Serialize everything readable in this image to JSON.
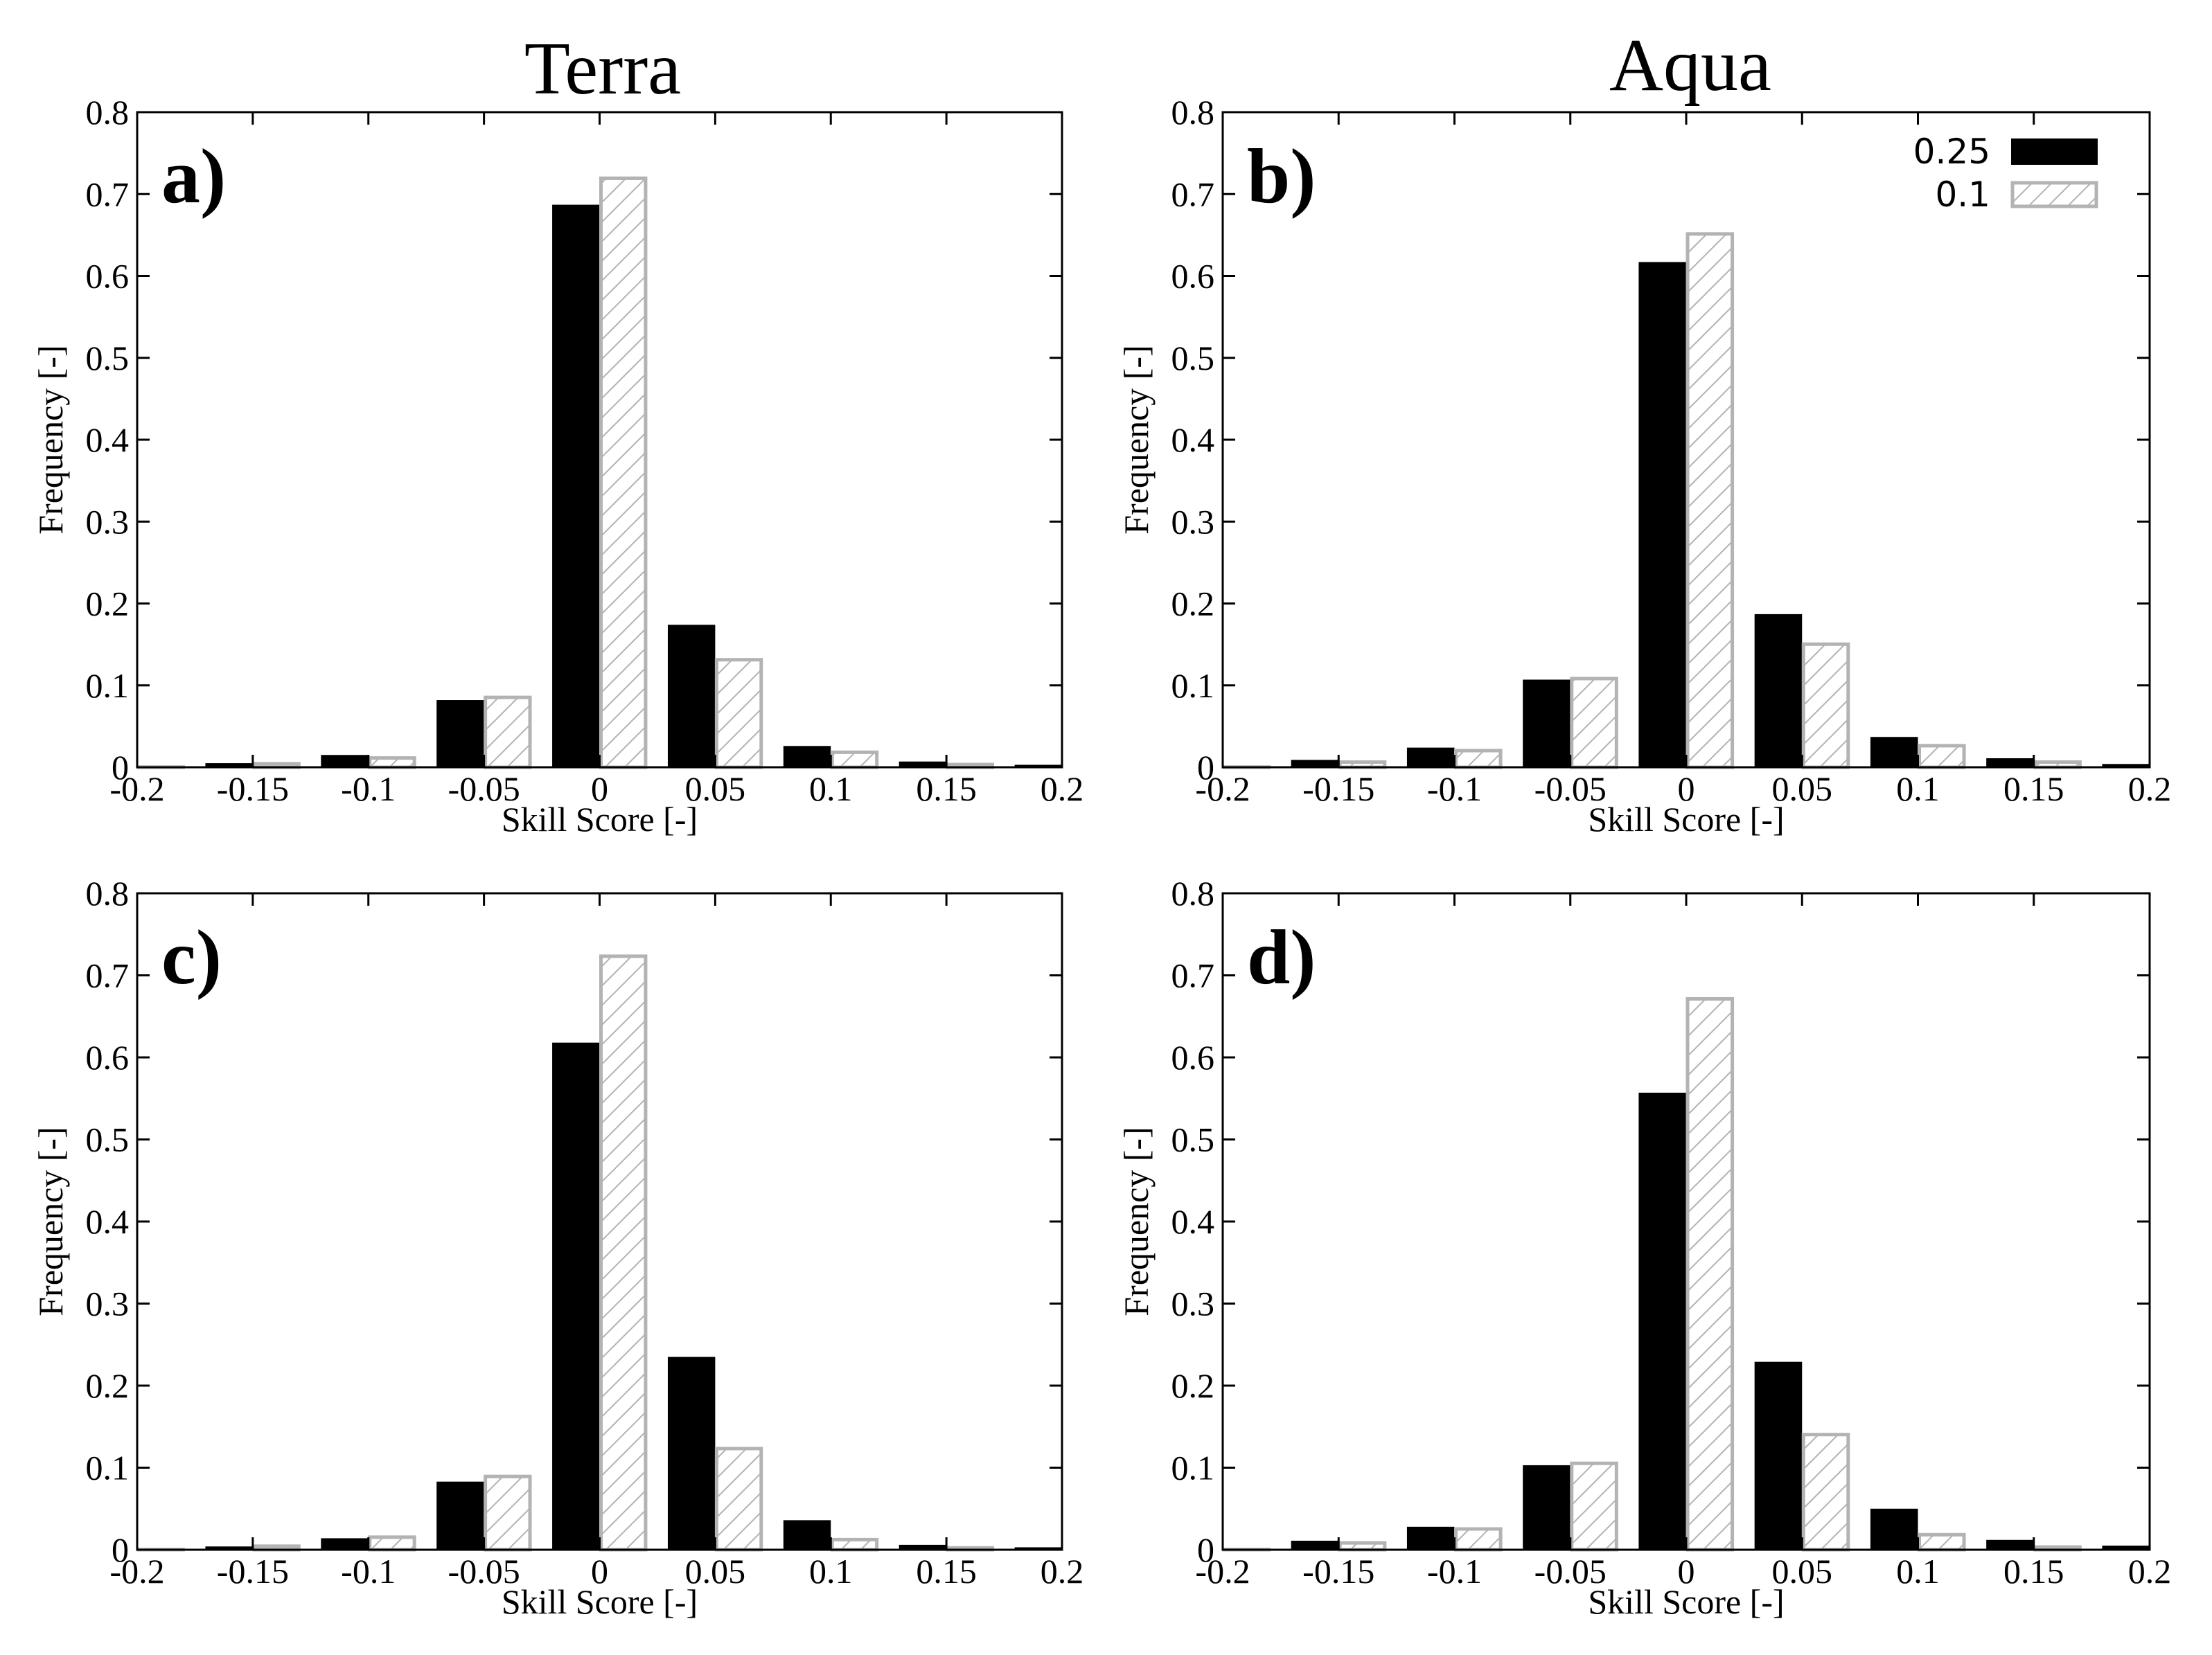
{
  "column_titles": [
    "Terra",
    "Aqua"
  ],
  "legend": [
    {
      "label": "0.25",
      "style": "solid",
      "color": "#000000"
    },
    {
      "label": "0.1",
      "style": "hatched",
      "color": "#b3b3b3"
    }
  ],
  "chart_data": [
    {
      "panel": "a)",
      "column": "Terra",
      "type": "bar",
      "xlabel": "Skill Score [-]",
      "ylabel": "Frequency [-]",
      "xlim": [
        -0.2,
        0.2
      ],
      "ylim": [
        0,
        0.8
      ],
      "xticks": [
        "-0.2",
        "-0.15",
        "-0.1",
        "-0.05",
        "0",
        "0.05",
        "0.1",
        "0.15",
        "0.2"
      ],
      "yticks": [
        "0",
        "0.1",
        "0.2",
        "0.3",
        "0.4",
        "0.5",
        "0.6",
        "0.7",
        "0.8"
      ],
      "bin_centers": [
        -0.2,
        -0.15,
        -0.1,
        -0.05,
        0,
        0.05,
        0.1,
        0.15,
        0.2
      ],
      "series": [
        {
          "name": "0.25",
          "values": [
            0.001,
            0.005,
            0.015,
            0.082,
            0.687,
            0.174,
            0.026,
            0.007,
            0.003
          ]
        },
        {
          "name": "0.1",
          "values": [
            0.002,
            0.006,
            0.013,
            0.087,
            0.721,
            0.133,
            0.02,
            0.005,
            0.001
          ]
        }
      ],
      "show_legend": false
    },
    {
      "panel": "b)",
      "column": "Aqua",
      "type": "bar",
      "xlabel": "Skill Score [-]",
      "ylabel": "Frequency [-]",
      "xlim": [
        -0.2,
        0.2
      ],
      "ylim": [
        0,
        0.8
      ],
      "xticks": [
        "-0.2",
        "-0.15",
        "-0.1",
        "-0.05",
        "0",
        "0.05",
        "0.1",
        "0.15",
        "0.2"
      ],
      "yticks": [
        "0",
        "0.1",
        "0.2",
        "0.3",
        "0.4",
        "0.5",
        "0.6",
        "0.7",
        "0.8"
      ],
      "bin_centers": [
        -0.2,
        -0.15,
        -0.1,
        -0.05,
        0,
        0.05,
        0.1,
        0.15,
        0.2
      ],
      "series": [
        {
          "name": "0.25",
          "values": [
            0.001,
            0.009,
            0.024,
            0.107,
            0.617,
            0.187,
            0.037,
            0.011,
            0.004
          ]
        },
        {
          "name": "0.1",
          "values": [
            0.002,
            0.008,
            0.022,
            0.11,
            0.653,
            0.152,
            0.028,
            0.008,
            0.001
          ]
        }
      ],
      "show_legend": true
    },
    {
      "panel": "c)",
      "column": "Terra",
      "type": "bar",
      "xlabel": "Skill Score [-]",
      "ylabel": "Frequency [-]",
      "xlim": [
        -0.2,
        0.2
      ],
      "ylim": [
        0,
        0.8
      ],
      "xticks": [
        "-0.2",
        "-0.15",
        "-0.1",
        "-0.05",
        "0",
        "0.05",
        "0.1",
        "0.15",
        "0.2"
      ],
      "yticks": [
        "0",
        "0.1",
        "0.2",
        "0.3",
        "0.4",
        "0.5",
        "0.6",
        "0.7",
        "0.8"
      ],
      "bin_centers": [
        -0.2,
        -0.15,
        -0.1,
        -0.05,
        0,
        0.05,
        0.1,
        0.15,
        0.2
      ],
      "series": [
        {
          "name": "0.25",
          "values": [
            0.001,
            0.004,
            0.014,
            0.083,
            0.618,
            0.235,
            0.036,
            0.006,
            0.003
          ]
        },
        {
          "name": "0.1",
          "values": [
            0.002,
            0.006,
            0.017,
            0.091,
            0.725,
            0.125,
            0.014,
            0.004,
            0.001
          ]
        }
      ],
      "show_legend": false
    },
    {
      "panel": "d)",
      "column": "Aqua",
      "type": "bar",
      "xlabel": "Skill Score [-]",
      "ylabel": "Frequency [-]",
      "xlim": [
        -0.2,
        0.2
      ],
      "ylim": [
        0,
        0.8
      ],
      "xticks": [
        "-0.2",
        "-0.15",
        "-0.1",
        "-0.05",
        "0",
        "0.05",
        "0.1",
        "0.15",
        "0.2"
      ],
      "yticks": [
        "0",
        "0.1",
        "0.2",
        "0.3",
        "0.4",
        "0.5",
        "0.6",
        "0.7",
        "0.8"
      ],
      "bin_centers": [
        -0.2,
        -0.15,
        -0.1,
        -0.05,
        0,
        0.05,
        0.1,
        0.15,
        0.2
      ],
      "series": [
        {
          "name": "0.25",
          "values": [
            0.001,
            0.011,
            0.028,
            0.103,
            0.557,
            0.229,
            0.05,
            0.012,
            0.005
          ]
        },
        {
          "name": "0.1",
          "values": [
            0.002,
            0.01,
            0.027,
            0.107,
            0.673,
            0.142,
            0.02,
            0.005,
            0.001
          ]
        }
      ],
      "show_legend": false
    }
  ]
}
